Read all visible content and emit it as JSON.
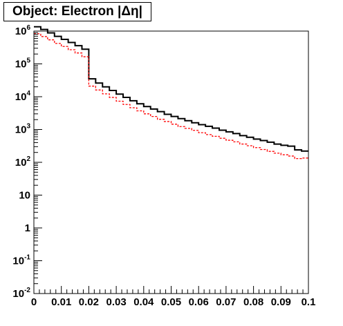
{
  "chart_data": {
    "type": "line",
    "title": "Object: Electron |Δη|",
    "xlim": [
      0,
      0.1
    ],
    "ylim": [
      0.01,
      1000000
    ],
    "yscale": "log",
    "grid": false,
    "legend": "none",
    "x_tick_labels": [
      "0",
      "0.01",
      "0.02",
      "0.03",
      "0.04",
      "0.05",
      "0.06",
      "0.07",
      "0.08",
      "0.09",
      "0.1"
    ],
    "y_tick_labels": [
      {
        "base": "10",
        "exp": "-2"
      },
      {
        "base": "10",
        "exp": "-1"
      },
      {
        "base": "1",
        "exp": ""
      },
      {
        "base": "10",
        "exp": ""
      },
      {
        "base": "10",
        "exp": "2"
      },
      {
        "base": "10",
        "exp": "3"
      },
      {
        "base": "10",
        "exp": "4"
      },
      {
        "base": "10",
        "exp": "5"
      },
      {
        "base": "10",
        "exp": "6"
      }
    ],
    "bin_width": 0.0025,
    "series": [
      {
        "color": "#000000",
        "style": "solid",
        "values": [
          1350000,
          1120000,
          880000,
          690000,
          560000,
          450000,
          360000,
          280000,
          35000,
          26000,
          20000,
          15500,
          12000,
          9500,
          7500,
          6100,
          5000,
          4200,
          3500,
          2900,
          2500,
          2150,
          1850,
          1600,
          1400,
          1250,
          1100,
          950,
          850,
          750,
          650,
          580,
          510,
          460,
          410,
          360,
          330,
          310,
          240,
          220
        ]
      },
      {
        "color": "#ff0000",
        "style": "dashed",
        "values": [
          830000,
          680000,
          540000,
          420000,
          340000,
          270000,
          215000,
          165000,
          21000,
          16000,
          12200,
          9500,
          7300,
          5800,
          4600,
          3700,
          3000,
          2500,
          2050,
          1750,
          1450,
          1230,
          1080,
          940,
          800,
          700,
          620,
          540,
          470,
          420,
          360,
          320,
          280,
          245,
          215,
          190,
          170,
          155,
          130,
          135
        ]
      }
    ]
  }
}
